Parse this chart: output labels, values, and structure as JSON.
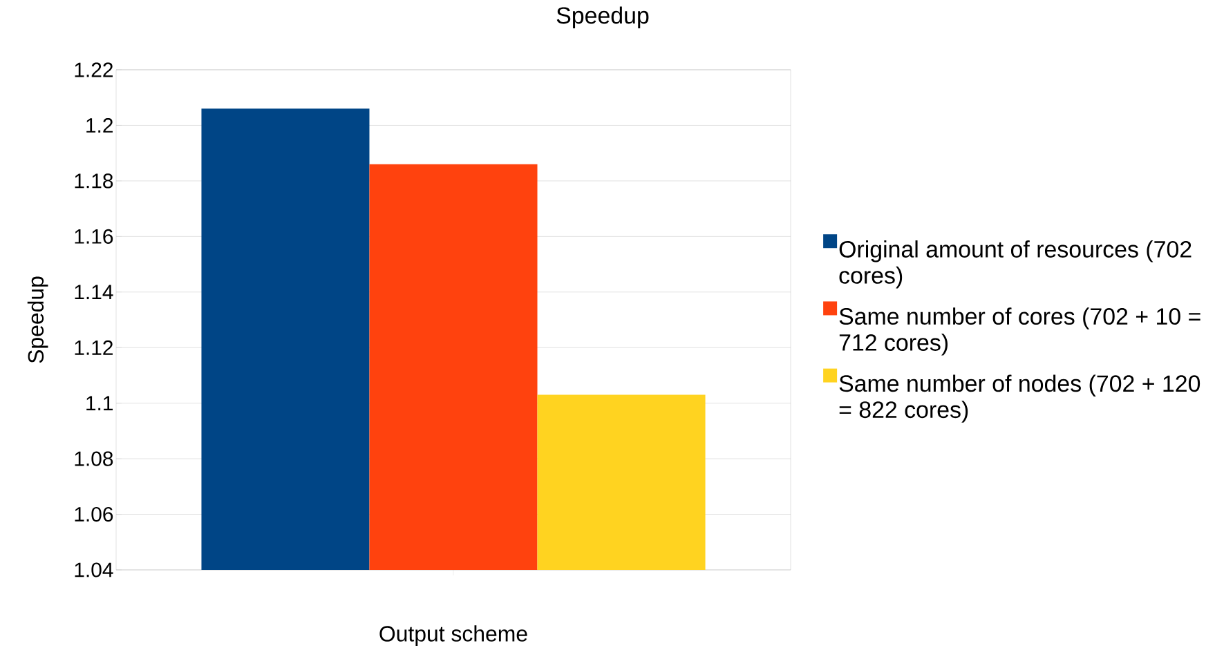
{
  "chart_data": {
    "type": "bar",
    "title": "Speedup",
    "xlabel": "Output scheme",
    "ylabel": "Speedup",
    "categories": [
      null
    ],
    "series": [
      {
        "name": "Original amount of resources (702 cores)",
        "color": "#004586",
        "values": [
          1.206
        ]
      },
      {
        "name": "Same number of cores (702 + 10 = 712 cores)",
        "color": "#ff420e",
        "values": [
          1.186
        ]
      },
      {
        "name": "Same number of nodes (702 + 120 = 822 cores)",
        "color": "#ffd320",
        "values": [
          1.103
        ]
      }
    ],
    "ylim": [
      1.04,
      1.22
    ],
    "yticks": [
      1.04,
      1.06,
      1.08,
      1.1,
      1.12,
      1.14,
      1.16,
      1.18,
      1.2,
      1.22
    ],
    "grid": "y",
    "legend": "right"
  }
}
